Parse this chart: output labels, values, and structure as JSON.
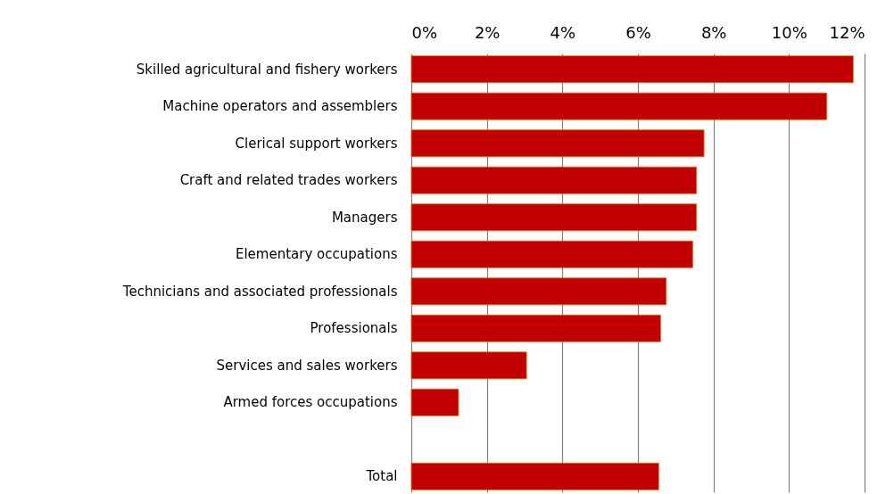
{
  "chart_data": {
    "type": "bar",
    "orientation": "horizontal",
    "categories": [
      "Skilled agricultural and fishery workers",
      "Machine operators and assemblers",
      "Clerical support workers ",
      "Craft and related trades workers",
      "Managers",
      "Elementary occupations",
      "Technicians and associated professionals",
      "Professionals",
      "Services and sales workers",
      "Armed forces occupations",
      null,
      "Total"
    ],
    "values": [
      11.7,
      11.0,
      7.75,
      7.55,
      7.55,
      7.45,
      6.75,
      6.6,
      3.05,
      1.25,
      null,
      6.55
    ],
    "color": "#c00000",
    "xlim": [
      0,
      12
    ],
    "xticks": [
      {
        "value": 0,
        "label": "0%"
      },
      {
        "value": 2,
        "label": "2%"
      },
      {
        "value": 4,
        "label": "4%"
      },
      {
        "value": 6,
        "label": "6%"
      },
      {
        "value": 8,
        "label": "8%"
      },
      {
        "value": 10,
        "label": "10%"
      },
      {
        "value": 12,
        "label": "12%"
      }
    ],
    "grid": "x"
  }
}
